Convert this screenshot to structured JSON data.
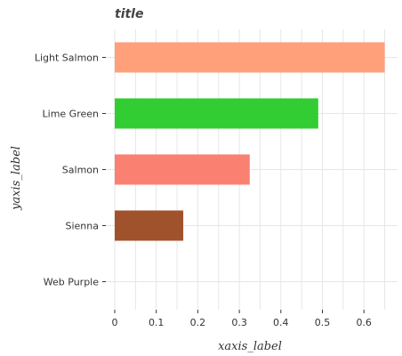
{
  "chart_data": {
    "type": "bar",
    "orientation": "horizontal",
    "title": "title",
    "xlabel": "xaxis_label",
    "ylabel": "yaxis_label",
    "xlim": [
      0,
      0.68
    ],
    "x_ticks": [
      "0",
      "0.1",
      "0.2",
      "0.3",
      "0.4",
      "0.5",
      "0.6"
    ],
    "grid": true,
    "categories": [
      "Web Purple",
      "Sienna",
      "Salmon",
      "Lime Green",
      "Light Salmon"
    ],
    "values": [
      0.0,
      0.165,
      0.325,
      0.49,
      0.65
    ],
    "colors": [
      "#7e2bb1",
      "#a0522d",
      "#fa8072",
      "#32cd32",
      "#ffa07a"
    ]
  }
}
